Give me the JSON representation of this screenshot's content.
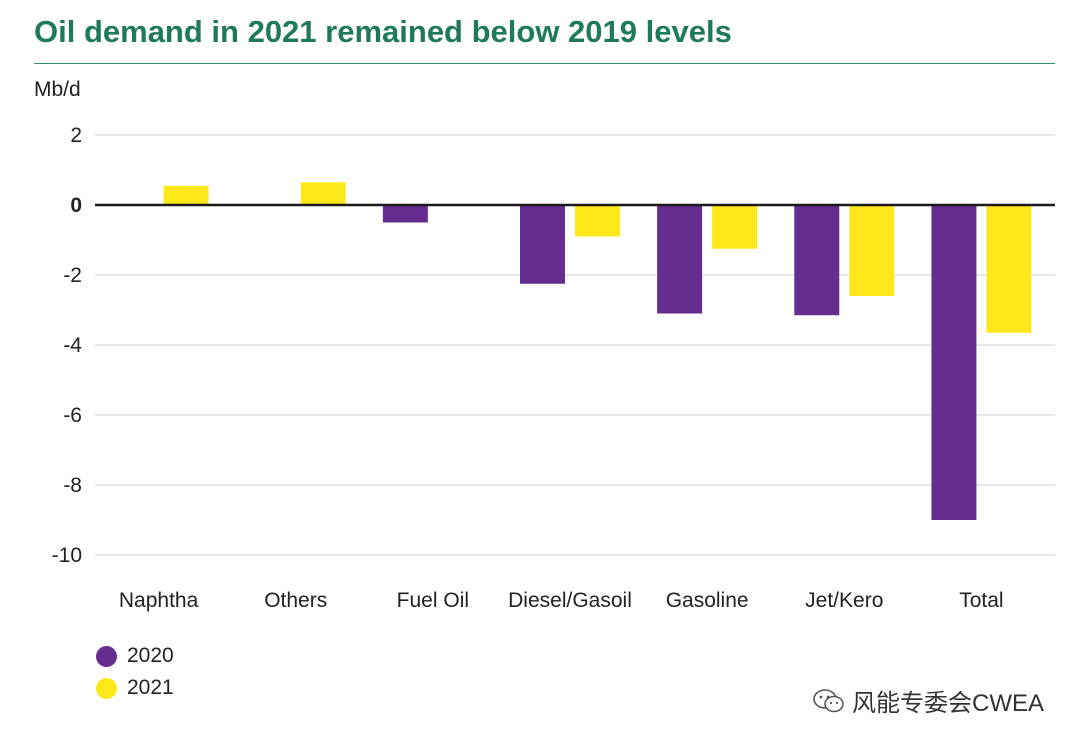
{
  "header": {
    "title": "Oil demand in 2021 remained below 2019 levels"
  },
  "watermark": {
    "text": "风能专委会CWEA",
    "icon": "wechat-icon"
  },
  "colors": {
    "title": "#1f7a5a",
    "series_2020": "#662d91",
    "series_2021": "#ffe81a",
    "zero_line": "#1a1a1a",
    "grid": "#cfcfcf"
  },
  "chart_data": {
    "type": "bar",
    "title": "Oil demand in 2021 remained below 2019 levels",
    "ylabel": "Mb/d",
    "xlabel": "",
    "ylim": [
      -10,
      2
    ],
    "yticks": [
      2,
      0,
      -2,
      -4,
      -6,
      -8,
      -10
    ],
    "grid": true,
    "legend_position": "bottom-left",
    "categories": [
      "Naphtha",
      "Others",
      "Fuel Oil",
      "Diesel/Gasoil",
      "Gasoline",
      "Jet/Kero",
      "Total"
    ],
    "series": [
      {
        "name": "2020",
        "color": "#662d91",
        "values": [
          0.0,
          0.0,
          -0.5,
          -2.25,
          -3.1,
          -3.15,
          -9.0
        ]
      },
      {
        "name": "2021",
        "color": "#ffe81a",
        "values": [
          0.55,
          0.65,
          0.0,
          -0.9,
          -1.25,
          -2.6,
          -3.65
        ]
      }
    ]
  }
}
